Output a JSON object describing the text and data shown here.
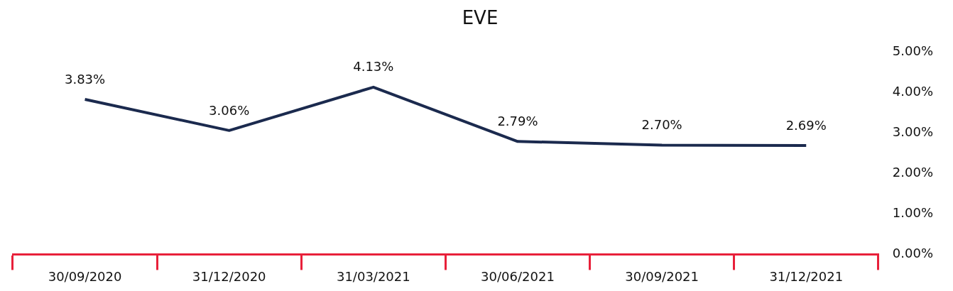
{
  "chart_data": {
    "type": "line",
    "title": "EVE",
    "categories": [
      "30/09/2020",
      "31/12/2020",
      "31/03/2021",
      "30/06/2021",
      "30/09/2021",
      "31/12/2021"
    ],
    "series": [
      {
        "color": "#1b2a4e",
        "values": [
          3.83,
          3.06,
          4.13,
          2.79,
          2.7,
          2.69
        ],
        "value_labels": [
          "3.83%",
          "3.06%",
          "4.13%",
          "2.79%",
          "2.70%",
          "2.69%"
        ]
      }
    ],
    "ylim": [
      0,
      5
    ],
    "yticks": [
      {
        "value": 0,
        "label": "0.00%"
      },
      {
        "value": 1,
        "label": "1.00%"
      },
      {
        "value": 2,
        "label": "2.00%"
      },
      {
        "value": 3,
        "label": "3.00%"
      },
      {
        "value": 4,
        "label": "4.00%"
      },
      {
        "value": 5,
        "label": "5.00%"
      }
    ],
    "grid": false,
    "legend": false,
    "marker": "none",
    "line_style": "solid"
  }
}
